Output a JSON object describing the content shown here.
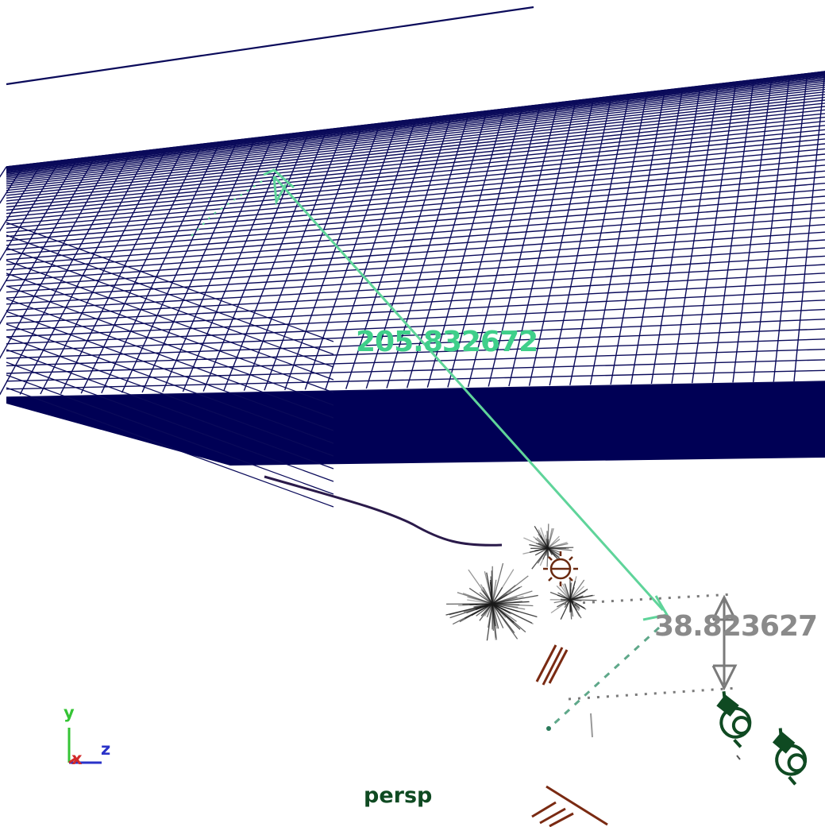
{
  "viewport": {
    "camera_name": "persp",
    "background_color": "#ffffff"
  },
  "measurements": {
    "distance_value": "205.832672",
    "height_value": "38.823627",
    "distance_color": "#3fcf8a",
    "height_color": "#8a8a8a"
  },
  "axis_indicator": {
    "x_label": "x",
    "y_label": "y",
    "z_label": "z",
    "x_color": "#d22a2a",
    "y_color": "#35c435",
    "z_color": "#2a32c8"
  },
  "colors": {
    "grid": "#0a0a5a",
    "grid_dense": "#000055",
    "curve": "#2a1a4a",
    "light": "#6a2a10",
    "camera": "#0f4a22",
    "foliage": "#1a1a1a"
  },
  "icons": [
    "point-light-icon",
    "camera-icon",
    "measure-arrow-icon",
    "axis-gizmo-icon"
  ]
}
